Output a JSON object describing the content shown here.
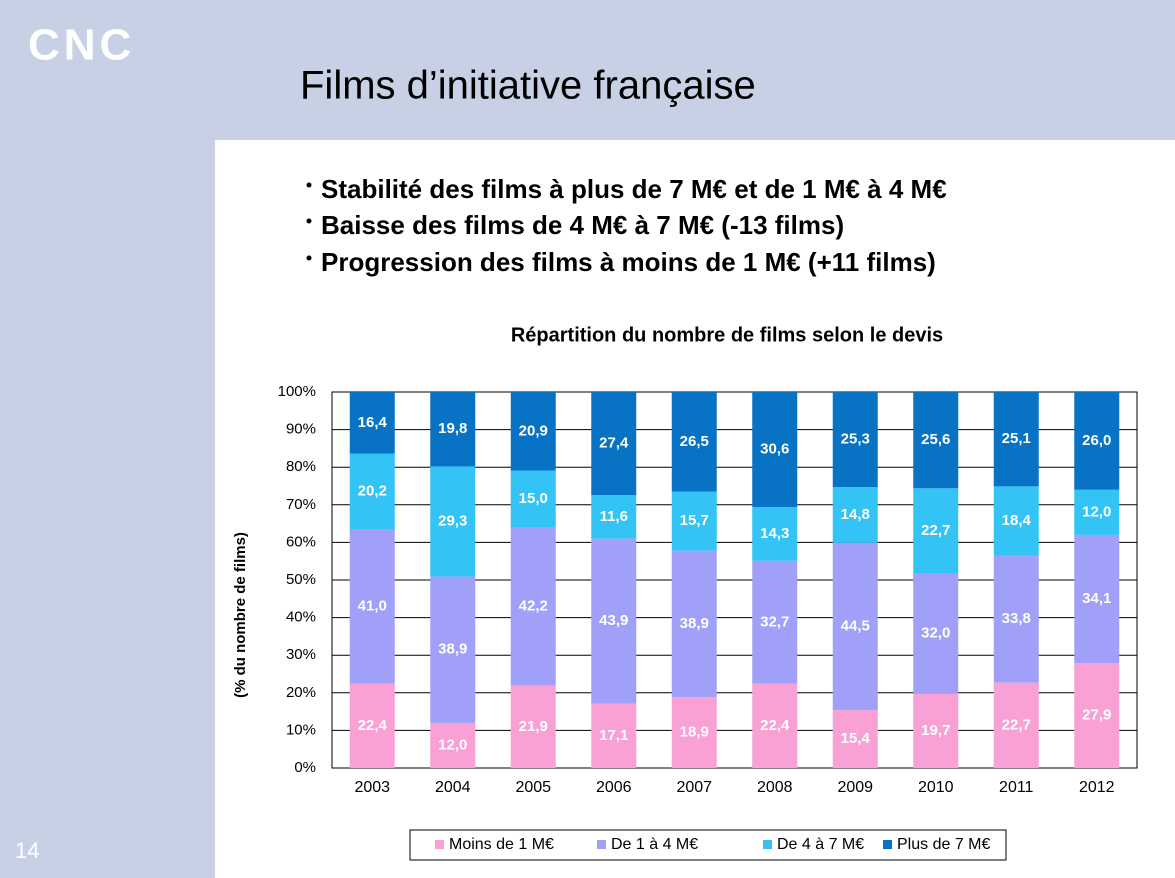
{
  "header": {
    "logo": "CNC",
    "title": "Films d’initiative française"
  },
  "bullets": [
    "Stabilité des films à plus de 7 M€ et de 1 M€ à 4 M€",
    "Baisse des films de 4 M€ à 7 M€ (-13 films)",
    "Progression des films à moins de 1 M€ (+11 films)"
  ],
  "page_number": "14",
  "chart_data": {
    "type": "stacked_bar",
    "title": "Répartition du nombre de films selon le devis",
    "ylabel": "(% du nombre de films)",
    "categories": [
      "2003",
      "2004",
      "2005",
      "2006",
      "2007",
      "2008",
      "2009",
      "2010",
      "2011",
      "2012"
    ],
    "series": [
      {
        "name": "Moins de 1 M€",
        "color": "#f9a0d4",
        "values": [
          22.4,
          12.0,
          21.9,
          17.1,
          18.9,
          22.4,
          15.4,
          19.7,
          22.7,
          27.9
        ],
        "value_labels": [
          "22,4",
          "12,0",
          "21,9",
          "17,1",
          "18,9",
          "22,4",
          "15,4",
          "19,7",
          "22,7",
          "27,9"
        ]
      },
      {
        "name": "De 1 à 4 M€",
        "color": "#a0a0f8",
        "values": [
          41.0,
          38.9,
          42.2,
          43.9,
          38.9,
          32.7,
          44.5,
          32.0,
          33.8,
          34.1
        ],
        "value_labels": [
          "41,0",
          "38,9",
          "42,2",
          "43,9",
          "38,9",
          "32,7",
          "44,5",
          "32,0",
          "33,8",
          "34,1"
        ]
      },
      {
        "name": "De 4 à 7 M€",
        "color": "#33c3f5",
        "values": [
          20.2,
          29.3,
          15.0,
          11.6,
          15.7,
          14.3,
          14.8,
          22.7,
          18.4,
          12.0
        ],
        "value_labels": [
          "20,2",
          "29,3",
          "15,0",
          "11,6",
          "15,7",
          "14,3",
          "14,8",
          "22,7",
          "18,4",
          "12,0"
        ]
      },
      {
        "name": "Plus de 7 M€",
        "color": "#0872c4",
        "values": [
          16.4,
          19.8,
          20.9,
          27.4,
          26.5,
          30.6,
          25.3,
          25.6,
          25.1,
          26.0
        ],
        "value_labels": [
          "16,4",
          "19,8",
          "20,9",
          "27,4",
          "26,5",
          "30,6",
          "25,3",
          "25,6",
          "25,1",
          "26,0"
        ]
      }
    ],
    "ylim": [
      0,
      100
    ],
    "yticks": [
      {
        "value": 0,
        "label": "0%"
      },
      {
        "value": 10,
        "label": "10%"
      },
      {
        "value": 20,
        "label": "20%"
      },
      {
        "value": 30,
        "label": "30%"
      },
      {
        "value": 40,
        "label": "40%"
      },
      {
        "value": 50,
        "label": "50%"
      },
      {
        "value": 60,
        "label": "60%"
      },
      {
        "value": 70,
        "label": "70%"
      },
      {
        "value": 80,
        "label": "80%"
      },
      {
        "value": 90,
        "label": "90%"
      },
      {
        "value": 100,
        "label": "100%"
      }
    ],
    "grid": true,
    "legend": "bottom"
  }
}
